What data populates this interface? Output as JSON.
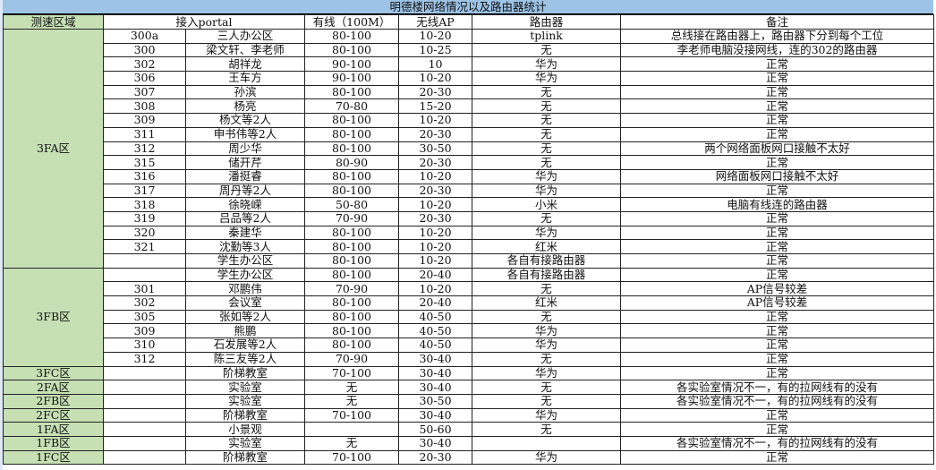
{
  "title": "明德楼网络情况以及路由器统计",
  "headers": {
    "zone": "测速区域",
    "portal": "接入portal",
    "wired": "有线（100M）",
    "ap": "无线AP",
    "router": "路由器",
    "note": "备注"
  },
  "colors": {
    "title_bg": "#9dc3e6",
    "zone_bg": "#c6e0b4"
  },
  "groups": [
    {
      "zone": "3FA区",
      "rows": [
        [
          "300a",
          "三人办公区",
          "80-100",
          "10-20",
          "tplink",
          "总线接在路由器上，路由器下分到每个工位"
        ],
        [
          "300",
          "梁文轩、李老师",
          "80-100",
          "10-25",
          "无",
          "李老师电脑没接网线，连的302的路由器"
        ],
        [
          "302",
          "胡祥龙",
          "90-100",
          "10",
          "华为",
          "正常"
        ],
        [
          "306",
          "王车方",
          "90-100",
          "10-20",
          "华为",
          "正常"
        ],
        [
          "307",
          "孙滨",
          "80-100",
          "20-30",
          "无",
          "正常"
        ],
        [
          "308",
          "杨亮",
          "70-80",
          "15-20",
          "无",
          "正常"
        ],
        [
          "309",
          "杨文等2人",
          "80-100",
          "10-20",
          "无",
          "正常"
        ],
        [
          "311",
          "申书伟等2人",
          "80-100",
          "20-30",
          "无",
          "正常"
        ],
        [
          "312",
          "周少华",
          "80-100",
          "30-50",
          "无",
          "两个网络面板网口接触不太好"
        ],
        [
          "315",
          "储开芹",
          "80-90",
          "20-30",
          "无",
          "正常"
        ],
        [
          "316",
          "潘挺睿",
          "80-100",
          "10-20",
          "华为",
          "网络面板网口接触不太好"
        ],
        [
          "317",
          "周丹等2人",
          "80-100",
          "20-30",
          "华为",
          "正常"
        ],
        [
          "318",
          "徐晓嵘",
          "50-80",
          "10-20",
          "小米",
          "电脑有线连的路由器"
        ],
        [
          "319",
          "吕品等2人",
          "70-90",
          "20-30",
          "无",
          "正常"
        ],
        [
          "320",
          "秦建华",
          "80-100",
          "10-20",
          "华为",
          "正常"
        ],
        [
          "321",
          "沈勤等3人",
          "80-100",
          "10-20",
          "红米",
          "正常"
        ],
        [
          "",
          "学生办公区",
          "80-100",
          "10-20",
          "各自有接路由器",
          "正常"
        ]
      ]
    },
    {
      "zone": "3FB区",
      "rows": [
        [
          "",
          "学生办公区",
          "80-100",
          "20-40",
          "各自有接路由器",
          "正常"
        ],
        [
          "301",
          "邓鹏伟",
          "70-90",
          "10-20",
          "无",
          "AP信号较差"
        ],
        [
          "302",
          "会议室",
          "80-100",
          "20-40",
          "红米",
          "AP信号较差"
        ],
        [
          "305",
          "张如等2人",
          "80-100",
          "40-50",
          "无",
          "正常"
        ],
        [
          "309",
          "熊鹏",
          "80-100",
          "40-50",
          "华为",
          "正常"
        ],
        [
          "310",
          "石发展等2人",
          "80-100",
          "40-50",
          "华为",
          "正常"
        ],
        [
          "312",
          "陈三友等2人",
          "70-90",
          "30-40",
          "无",
          "正常"
        ]
      ]
    },
    {
      "zone": "3FC区",
      "rows": [
        [
          "",
          "阶梯教室",
          "70-100",
          "30-40",
          "华为",
          "正常"
        ]
      ]
    },
    {
      "zone": "2FA区",
      "rows": [
        [
          "",
          "实验室",
          "无",
          "30-40",
          "无",
          "各实验室情况不一，有的拉网线有的没有"
        ]
      ]
    },
    {
      "zone": "2FB区",
      "rows": [
        [
          "",
          "实验室",
          "无",
          "30-50",
          "无",
          "各实验室情况不一，有的拉网线有的没有"
        ]
      ]
    },
    {
      "zone": "2FC区",
      "rows": [
        [
          "",
          "阶梯教室",
          "70-100",
          "30-40",
          "华为",
          "正常"
        ]
      ]
    },
    {
      "zone": "1FA区",
      "rows": [
        [
          "",
          "小景观",
          "",
          "50-60",
          "无",
          "正常"
        ]
      ]
    },
    {
      "zone": "1FB区",
      "rows": [
        [
          "",
          "实验室",
          "无",
          "30-40",
          "",
          "各实验室情况不一，有的拉网线有的没有"
        ]
      ]
    },
    {
      "zone": "1FC区",
      "rows": [
        [
          "",
          "阶梯教室",
          "70-100",
          "20-30",
          "华为",
          "正常"
        ]
      ]
    }
  ]
}
